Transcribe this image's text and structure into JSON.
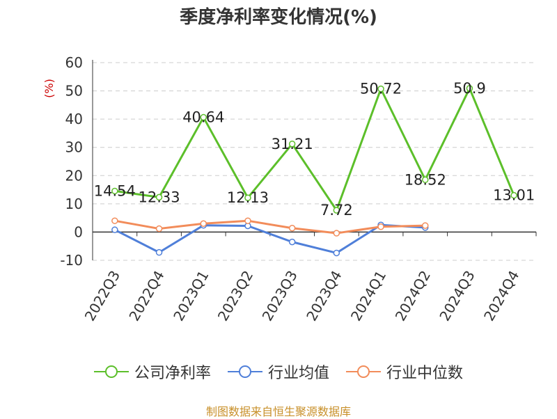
{
  "title": "季度净利率变化情况(%)",
  "footer": "制图数据来自恒生聚源数据库",
  "chart_data": {
    "type": "line",
    "title": "季度净利率变化情况(%)",
    "xlabel": "",
    "ylabel": "(%)",
    "ylim": [
      -10,
      60
    ],
    "yticks": [
      -10,
      0,
      10,
      20,
      30,
      40,
      50,
      60
    ],
    "grid": true,
    "legend_position": "bottom",
    "categories": [
      "2022Q3",
      "2022Q4",
      "2023Q1",
      "2023Q2",
      "2023Q3",
      "2023Q4",
      "2024Q1",
      "2024Q2",
      "2024Q3",
      "2024Q4"
    ],
    "series": [
      {
        "name": "公司净利率",
        "color": "#5cbf2a",
        "values": [
          14.54,
          12.33,
          40.64,
          12.13,
          31.21,
          7.72,
          50.72,
          18.52,
          50.9,
          13.01
        ],
        "labels": [
          "14.54",
          "12.33",
          "40.64",
          "12.13",
          "31.21",
          "7.72",
          "50.72",
          "18.52",
          "50.9",
          "13.01"
        ]
      },
      {
        "name": "行业均值",
        "color": "#4f7fd9",
        "values": [
          0.8,
          -7.2,
          2.4,
          2.2,
          -3.5,
          -7.4,
          2.5,
          1.6,
          null,
          null
        ]
      },
      {
        "name": "行业中位数",
        "color": "#f28c5a",
        "values": [
          4.0,
          1.2,
          3.0,
          4.0,
          1.4,
          -0.4,
          1.9,
          2.3,
          null,
          null
        ]
      }
    ]
  }
}
